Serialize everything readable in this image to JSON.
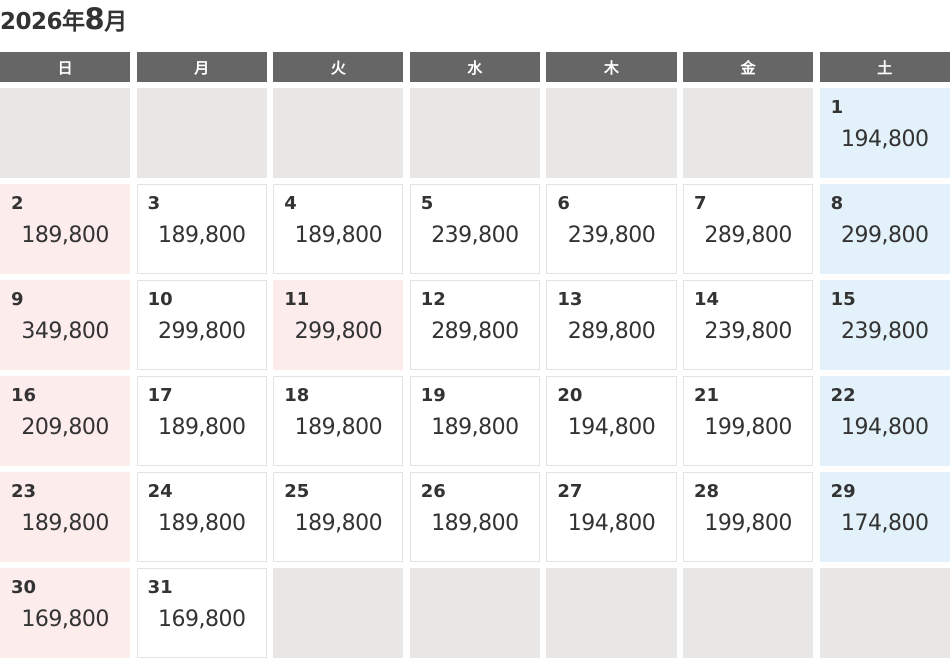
{
  "title": {
    "year": "2026年",
    "month": "8",
    "month_suffix": "月"
  },
  "weekdays": [
    "日",
    "月",
    "火",
    "水",
    "木",
    "金",
    "土"
  ],
  "colors": {
    "header": "#666666",
    "empty": "#e8e7e5",
    "holiday": "#fcecec",
    "saturday": "#e3f1fa"
  },
  "leading_blanks": 6,
  "trailing_blanks": 5,
  "days": [
    {
      "day": "1",
      "price": "194,800",
      "type": "sat"
    },
    {
      "day": "2",
      "price": "189,800",
      "type": "sun"
    },
    {
      "day": "3",
      "price": "189,800",
      "type": ""
    },
    {
      "day": "4",
      "price": "189,800",
      "type": ""
    },
    {
      "day": "5",
      "price": "239,800",
      "type": ""
    },
    {
      "day": "6",
      "price": "239,800",
      "type": ""
    },
    {
      "day": "7",
      "price": "289,800",
      "type": ""
    },
    {
      "day": "8",
      "price": "299,800",
      "type": "sat"
    },
    {
      "day": "9",
      "price": "349,800",
      "type": "sun"
    },
    {
      "day": "10",
      "price": "299,800",
      "type": ""
    },
    {
      "day": "11",
      "price": "299,800",
      "type": "sun"
    },
    {
      "day": "12",
      "price": "289,800",
      "type": ""
    },
    {
      "day": "13",
      "price": "289,800",
      "type": ""
    },
    {
      "day": "14",
      "price": "239,800",
      "type": ""
    },
    {
      "day": "15",
      "price": "239,800",
      "type": "sat"
    },
    {
      "day": "16",
      "price": "209,800",
      "type": "sun"
    },
    {
      "day": "17",
      "price": "189,800",
      "type": ""
    },
    {
      "day": "18",
      "price": "189,800",
      "type": ""
    },
    {
      "day": "19",
      "price": "189,800",
      "type": ""
    },
    {
      "day": "20",
      "price": "194,800",
      "type": ""
    },
    {
      "day": "21",
      "price": "199,800",
      "type": ""
    },
    {
      "day": "22",
      "price": "194,800",
      "type": "sat"
    },
    {
      "day": "23",
      "price": "189,800",
      "type": "sun"
    },
    {
      "day": "24",
      "price": "189,800",
      "type": ""
    },
    {
      "day": "25",
      "price": "189,800",
      "type": ""
    },
    {
      "day": "26",
      "price": "189,800",
      "type": ""
    },
    {
      "day": "27",
      "price": "194,800",
      "type": ""
    },
    {
      "day": "28",
      "price": "199,800",
      "type": ""
    },
    {
      "day": "29",
      "price": "174,800",
      "type": "sat"
    },
    {
      "day": "30",
      "price": "169,800",
      "type": "sun"
    },
    {
      "day": "31",
      "price": "169,800",
      "type": ""
    }
  ]
}
